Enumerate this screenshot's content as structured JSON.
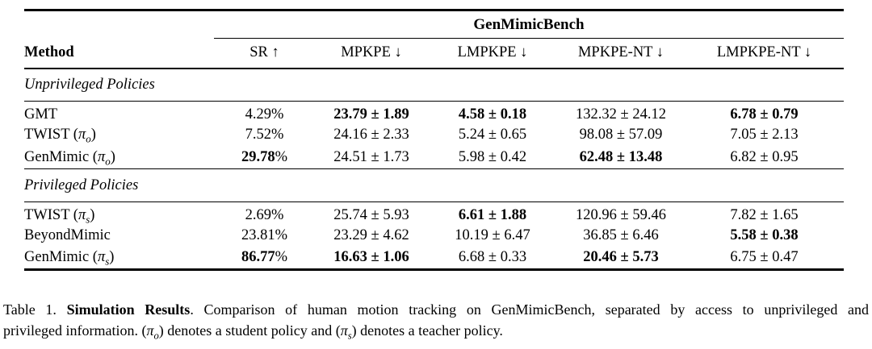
{
  "table": {
    "group_header": "GenMimicBench",
    "columns": [
      "Method",
      "SR ↑",
      "MPKPE ↓",
      "LMPKPE ↓",
      "MPKPE-NT ↓",
      "LMPKPE-NT ↓"
    ],
    "sections": [
      {
        "title": "Unprivileged Policies",
        "rows": [
          {
            "method": {
              "pre": "GMT",
              "pi": "",
              "sub": "",
              "post": ""
            },
            "sr": {
              "value": "4.29",
              "unit": "%",
              "bold": false
            },
            "mpkpe": {
              "text": "23.79 ± 1.89",
              "bold": true
            },
            "lmpkpe": {
              "text": "4.58 ± 0.18",
              "bold": true
            },
            "mpkpe_nt": {
              "text": "132.32 ± 24.12",
              "bold": false
            },
            "lmpkpe_nt": {
              "text": "6.78 ± 0.79",
              "bold": true
            }
          },
          {
            "method": {
              "pre": "TWIST (",
              "pi": "π",
              "sub": "o",
              "post": ")"
            },
            "sr": {
              "value": "7.52",
              "unit": "%",
              "bold": false
            },
            "mpkpe": {
              "text": "24.16 ± 2.33",
              "bold": false
            },
            "lmpkpe": {
              "text": "5.24 ± 0.65",
              "bold": false
            },
            "mpkpe_nt": {
              "text": "98.08 ± 57.09",
              "bold": false
            },
            "lmpkpe_nt": {
              "text": "7.05 ± 2.13",
              "bold": false
            }
          },
          {
            "method": {
              "pre": "GenMimic (",
              "pi": "π",
              "sub": "o",
              "post": ")"
            },
            "sr": {
              "value": "29.78",
              "unit": "%",
              "bold": true
            },
            "mpkpe": {
              "text": "24.51 ± 1.73",
              "bold": false
            },
            "lmpkpe": {
              "text": "5.98 ± 0.42",
              "bold": false
            },
            "mpkpe_nt": {
              "text": "62.48 ± 13.48",
              "bold": true
            },
            "lmpkpe_nt": {
              "text": "6.82 ± 0.95",
              "bold": false
            }
          }
        ]
      },
      {
        "title": "Privileged Policies",
        "rows": [
          {
            "method": {
              "pre": "TWIST (",
              "pi": "π",
              "sub": "s",
              "post": ")"
            },
            "sr": {
              "value": "2.69",
              "unit": "%",
              "bold": false
            },
            "mpkpe": {
              "text": "25.74 ± 5.93",
              "bold": false
            },
            "lmpkpe": {
              "text": "6.61 ± 1.88",
              "bold": true
            },
            "mpkpe_nt": {
              "text": "120.96 ± 59.46",
              "bold": false
            },
            "lmpkpe_nt": {
              "text": "7.82 ± 1.65",
              "bold": false
            }
          },
          {
            "method": {
              "pre": "BeyondMimic",
              "pi": "",
              "sub": "",
              "post": ""
            },
            "sr": {
              "value": "23.81",
              "unit": "%",
              "bold": false
            },
            "mpkpe": {
              "text": "23.29 ± 4.62",
              "bold": false
            },
            "lmpkpe": {
              "text": "10.19 ± 6.47",
              "bold": false
            },
            "mpkpe_nt": {
              "text": "36.85 ± 6.46",
              "bold": false
            },
            "lmpkpe_nt": {
              "text": "5.58 ± 0.38",
              "bold": true
            }
          },
          {
            "method": {
              "pre": "GenMimic (",
              "pi": "π",
              "sub": "s",
              "post": ")"
            },
            "sr": {
              "value": "86.77",
              "unit": "%",
              "bold": true
            },
            "mpkpe": {
              "text": "16.63 ± 1.06",
              "bold": true
            },
            "lmpkpe": {
              "text": "6.68 ± 0.33",
              "bold": false
            },
            "mpkpe_nt": {
              "text": "20.46 ± 5.73",
              "bold": true
            },
            "lmpkpe_nt": {
              "text": "6.75 ± 0.47",
              "bold": false
            }
          }
        ]
      }
    ]
  },
  "caption": {
    "line1": {
      "prefix": "Table 1. ",
      "bold": "Simulation Results",
      "rest": ". Comparison of human motion tracking on GenMimicBench, separated by access to unprivileged and"
    },
    "line2": {
      "p1": "privileged information. (",
      "pi1": "π",
      "sub1": "o",
      "p2": ") denotes a student policy and (",
      "pi2": "π",
      "sub2": "s",
      "p3": ") denotes a teacher policy."
    }
  },
  "colors": {
    "text": "#000000",
    "background": "#ffffff",
    "rule": "#000000"
  }
}
